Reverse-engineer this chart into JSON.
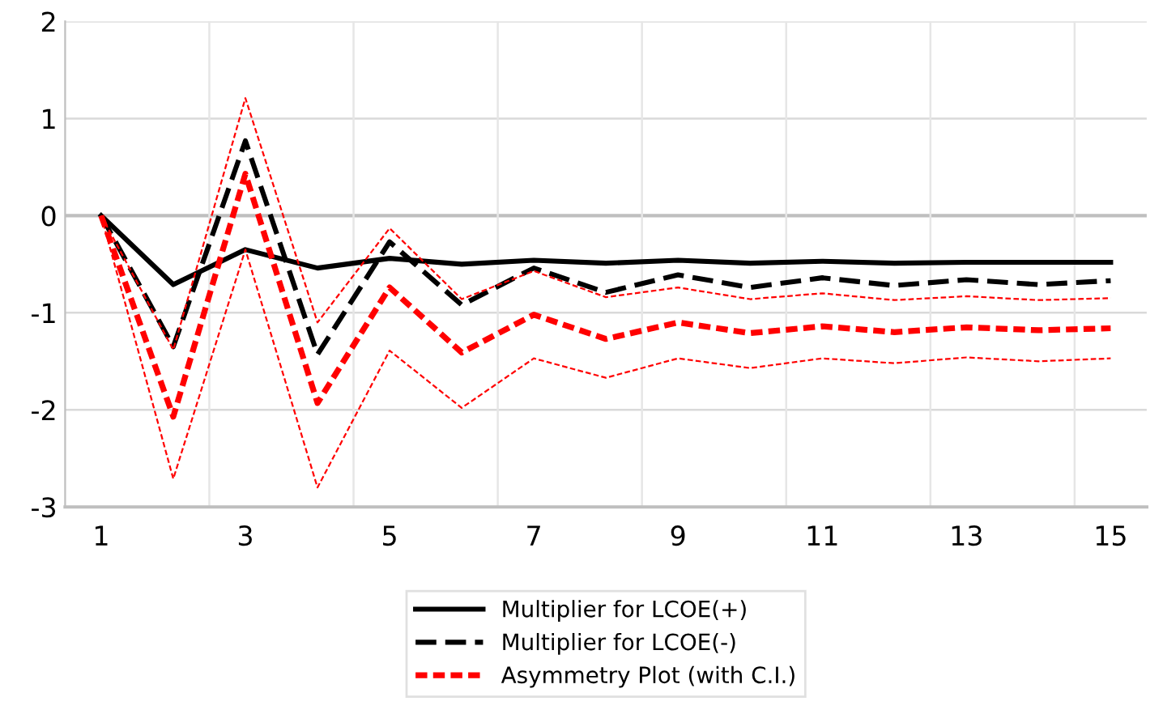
{
  "chart_data": {
    "type": "line",
    "categories": [
      "1",
      null,
      "3",
      null,
      "5",
      null,
      "7",
      null,
      "9",
      null,
      "11",
      null,
      "13",
      null,
      "15"
    ],
    "ylim": [
      -3,
      2
    ],
    "yticks": [
      -3,
      -2,
      -1,
      0,
      1,
      2
    ],
    "grid": true,
    "legend": "bottom",
    "marker": "none",
    "series": [
      {
        "name": "Multiplier for LCOE(+)",
        "color": "#000000",
        "line_style": "solid",
        "values": [
          0,
          -0.71,
          -0.35,
          -0.54,
          -0.44,
          -0.5,
          -0.46,
          -0.49,
          -0.46,
          -0.49,
          -0.47,
          -0.49,
          -0.48,
          -0.48,
          -0.48
        ]
      },
      {
        "name": "Multiplier for LCOE(-)",
        "color": "#000000",
        "line_style": "dashed",
        "values": [
          0,
          -1.35,
          0.77,
          -1.43,
          -0.27,
          -0.92,
          -0.54,
          -0.79,
          -0.61,
          -0.74,
          -0.64,
          -0.72,
          -0.66,
          -0.71,
          -0.67
        ]
      },
      {
        "name": "Asymmetry Plot (with C.I.)",
        "color": "#ff0000",
        "line_style": "dashed",
        "values": [
          0,
          -2.07,
          0.43,
          -1.93,
          -0.74,
          -1.41,
          -1.02,
          -1.27,
          -1.1,
          -1.21,
          -1.14,
          -1.2,
          -1.15,
          -1.18,
          -1.16
        ]
      },
      {
        "color": "#ff0000",
        "line_style": "dotted",
        "values": [
          0,
          -2.71,
          -0.35,
          -2.8,
          -1.39,
          -1.98,
          -1.47,
          -1.67,
          -1.47,
          -1.57,
          -1.47,
          -1.52,
          -1.46,
          -1.5,
          -1.47
        ]
      },
      {
        "color": "#ff0000",
        "line_style": "dotted",
        "values": [
          0,
          -1.38,
          1.21,
          -1.1,
          -0.13,
          -0.86,
          -0.57,
          -0.84,
          -0.74,
          -0.86,
          -0.8,
          -0.87,
          -0.83,
          -0.87,
          -0.85
        ]
      }
    ]
  }
}
